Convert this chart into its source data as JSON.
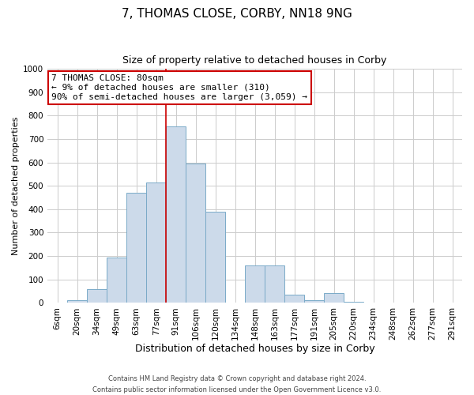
{
  "title": "7, THOMAS CLOSE, CORBY, NN18 9NG",
  "subtitle": "Size of property relative to detached houses in Corby",
  "xlabel": "Distribution of detached houses by size in Corby",
  "ylabel": "Number of detached properties",
  "categories": [
    "6sqm",
    "20sqm",
    "34sqm",
    "49sqm",
    "63sqm",
    "77sqm",
    "91sqm",
    "106sqm",
    "120sqm",
    "134sqm",
    "148sqm",
    "163sqm",
    "177sqm",
    "191sqm",
    "205sqm",
    "220sqm",
    "234sqm",
    "248sqm",
    "262sqm",
    "277sqm",
    "291sqm"
  ],
  "values": [
    0,
    10,
    60,
    195,
    470,
    515,
    755,
    595,
    390,
    0,
    160,
    160,
    35,
    10,
    40,
    5,
    0,
    0,
    0,
    0,
    0
  ],
  "bar_color": "#ccdaea",
  "bar_edge_color": "#7aaac8",
  "vline_x_index": 4.5,
  "vline_color": "#cc0000",
  "annotation_text": "7 THOMAS CLOSE: 80sqm\n← 9% of detached houses are smaller (310)\n90% of semi-detached houses are larger (3,059) →",
  "annotation_box_color": "#ffffff",
  "annotation_box_edge": "#cc0000",
  "ylim": [
    0,
    1000
  ],
  "yticks": [
    0,
    100,
    200,
    300,
    400,
    500,
    600,
    700,
    800,
    900,
    1000
  ],
  "grid_color": "#cccccc",
  "footer1": "Contains HM Land Registry data © Crown copyright and database right 2024.",
  "footer2": "Contains public sector information licensed under the Open Government Licence v3.0.",
  "bg_color": "#ffffff",
  "title_fontsize": 11,
  "subtitle_fontsize": 9,
  "xlabel_fontsize": 9,
  "ylabel_fontsize": 8,
  "tick_fontsize": 7.5,
  "annot_fontsize": 8,
  "footer_fontsize": 6
}
